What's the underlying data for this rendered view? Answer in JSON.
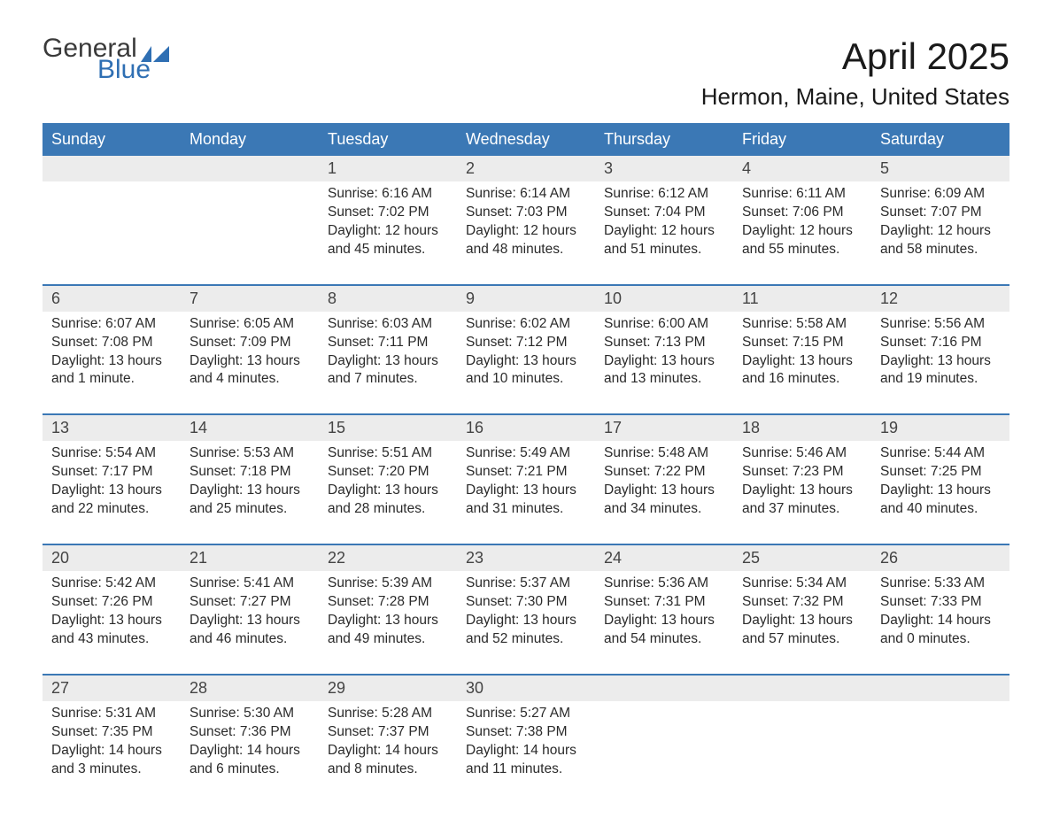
{
  "brand": {
    "word1": "General",
    "word2": "Blue"
  },
  "title": "April 2025",
  "location": "Hermon, Maine, United States",
  "colors": {
    "header_bg": "#3b78b5",
    "header_text": "#ffffff",
    "daynum_bg": "#ececec",
    "week_border": "#3b78b5",
    "text": "#2a2a2a",
    "logo_gray": "#3a3a3a",
    "logo_blue": "#2f6fb3",
    "logo_shape": "#2f6fb3"
  },
  "weekdays": [
    "Sunday",
    "Monday",
    "Tuesday",
    "Wednesday",
    "Thursday",
    "Friday",
    "Saturday"
  ],
  "weeks": [
    [
      null,
      null,
      {
        "n": "1",
        "sr": "6:16 AM",
        "ss": "7:02 PM",
        "dl": "12 hours and 45 minutes."
      },
      {
        "n": "2",
        "sr": "6:14 AM",
        "ss": "7:03 PM",
        "dl": "12 hours and 48 minutes."
      },
      {
        "n": "3",
        "sr": "6:12 AM",
        "ss": "7:04 PM",
        "dl": "12 hours and 51 minutes."
      },
      {
        "n": "4",
        "sr": "6:11 AM",
        "ss": "7:06 PM",
        "dl": "12 hours and 55 minutes."
      },
      {
        "n": "5",
        "sr": "6:09 AM",
        "ss": "7:07 PM",
        "dl": "12 hours and 58 minutes."
      }
    ],
    [
      {
        "n": "6",
        "sr": "6:07 AM",
        "ss": "7:08 PM",
        "dl": "13 hours and 1 minute."
      },
      {
        "n": "7",
        "sr": "6:05 AM",
        "ss": "7:09 PM",
        "dl": "13 hours and 4 minutes."
      },
      {
        "n": "8",
        "sr": "6:03 AM",
        "ss": "7:11 PM",
        "dl": "13 hours and 7 minutes."
      },
      {
        "n": "9",
        "sr": "6:02 AM",
        "ss": "7:12 PM",
        "dl": "13 hours and 10 minutes."
      },
      {
        "n": "10",
        "sr": "6:00 AM",
        "ss": "7:13 PM",
        "dl": "13 hours and 13 minutes."
      },
      {
        "n": "11",
        "sr": "5:58 AM",
        "ss": "7:15 PM",
        "dl": "13 hours and 16 minutes."
      },
      {
        "n": "12",
        "sr": "5:56 AM",
        "ss": "7:16 PM",
        "dl": "13 hours and 19 minutes."
      }
    ],
    [
      {
        "n": "13",
        "sr": "5:54 AM",
        "ss": "7:17 PM",
        "dl": "13 hours and 22 minutes."
      },
      {
        "n": "14",
        "sr": "5:53 AM",
        "ss": "7:18 PM",
        "dl": "13 hours and 25 minutes."
      },
      {
        "n": "15",
        "sr": "5:51 AM",
        "ss": "7:20 PM",
        "dl": "13 hours and 28 minutes."
      },
      {
        "n": "16",
        "sr": "5:49 AM",
        "ss": "7:21 PM",
        "dl": "13 hours and 31 minutes."
      },
      {
        "n": "17",
        "sr": "5:48 AM",
        "ss": "7:22 PM",
        "dl": "13 hours and 34 minutes."
      },
      {
        "n": "18",
        "sr": "5:46 AM",
        "ss": "7:23 PM",
        "dl": "13 hours and 37 minutes."
      },
      {
        "n": "19",
        "sr": "5:44 AM",
        "ss": "7:25 PM",
        "dl": "13 hours and 40 minutes."
      }
    ],
    [
      {
        "n": "20",
        "sr": "5:42 AM",
        "ss": "7:26 PM",
        "dl": "13 hours and 43 minutes."
      },
      {
        "n": "21",
        "sr": "5:41 AM",
        "ss": "7:27 PM",
        "dl": "13 hours and 46 minutes."
      },
      {
        "n": "22",
        "sr": "5:39 AM",
        "ss": "7:28 PM",
        "dl": "13 hours and 49 minutes."
      },
      {
        "n": "23",
        "sr": "5:37 AM",
        "ss": "7:30 PM",
        "dl": "13 hours and 52 minutes."
      },
      {
        "n": "24",
        "sr": "5:36 AM",
        "ss": "7:31 PM",
        "dl": "13 hours and 54 minutes."
      },
      {
        "n": "25",
        "sr": "5:34 AM",
        "ss": "7:32 PM",
        "dl": "13 hours and 57 minutes."
      },
      {
        "n": "26",
        "sr": "5:33 AM",
        "ss": "7:33 PM",
        "dl": "14 hours and 0 minutes."
      }
    ],
    [
      {
        "n": "27",
        "sr": "5:31 AM",
        "ss": "7:35 PM",
        "dl": "14 hours and 3 minutes."
      },
      {
        "n": "28",
        "sr": "5:30 AM",
        "ss": "7:36 PM",
        "dl": "14 hours and 6 minutes."
      },
      {
        "n": "29",
        "sr": "5:28 AM",
        "ss": "7:37 PM",
        "dl": "14 hours and 8 minutes."
      },
      {
        "n": "30",
        "sr": "5:27 AM",
        "ss": "7:38 PM",
        "dl": "14 hours and 11 minutes."
      },
      null,
      null,
      null
    ]
  ],
  "labels": {
    "sunrise": "Sunrise: ",
    "sunset": "Sunset: ",
    "daylight": "Daylight: "
  }
}
